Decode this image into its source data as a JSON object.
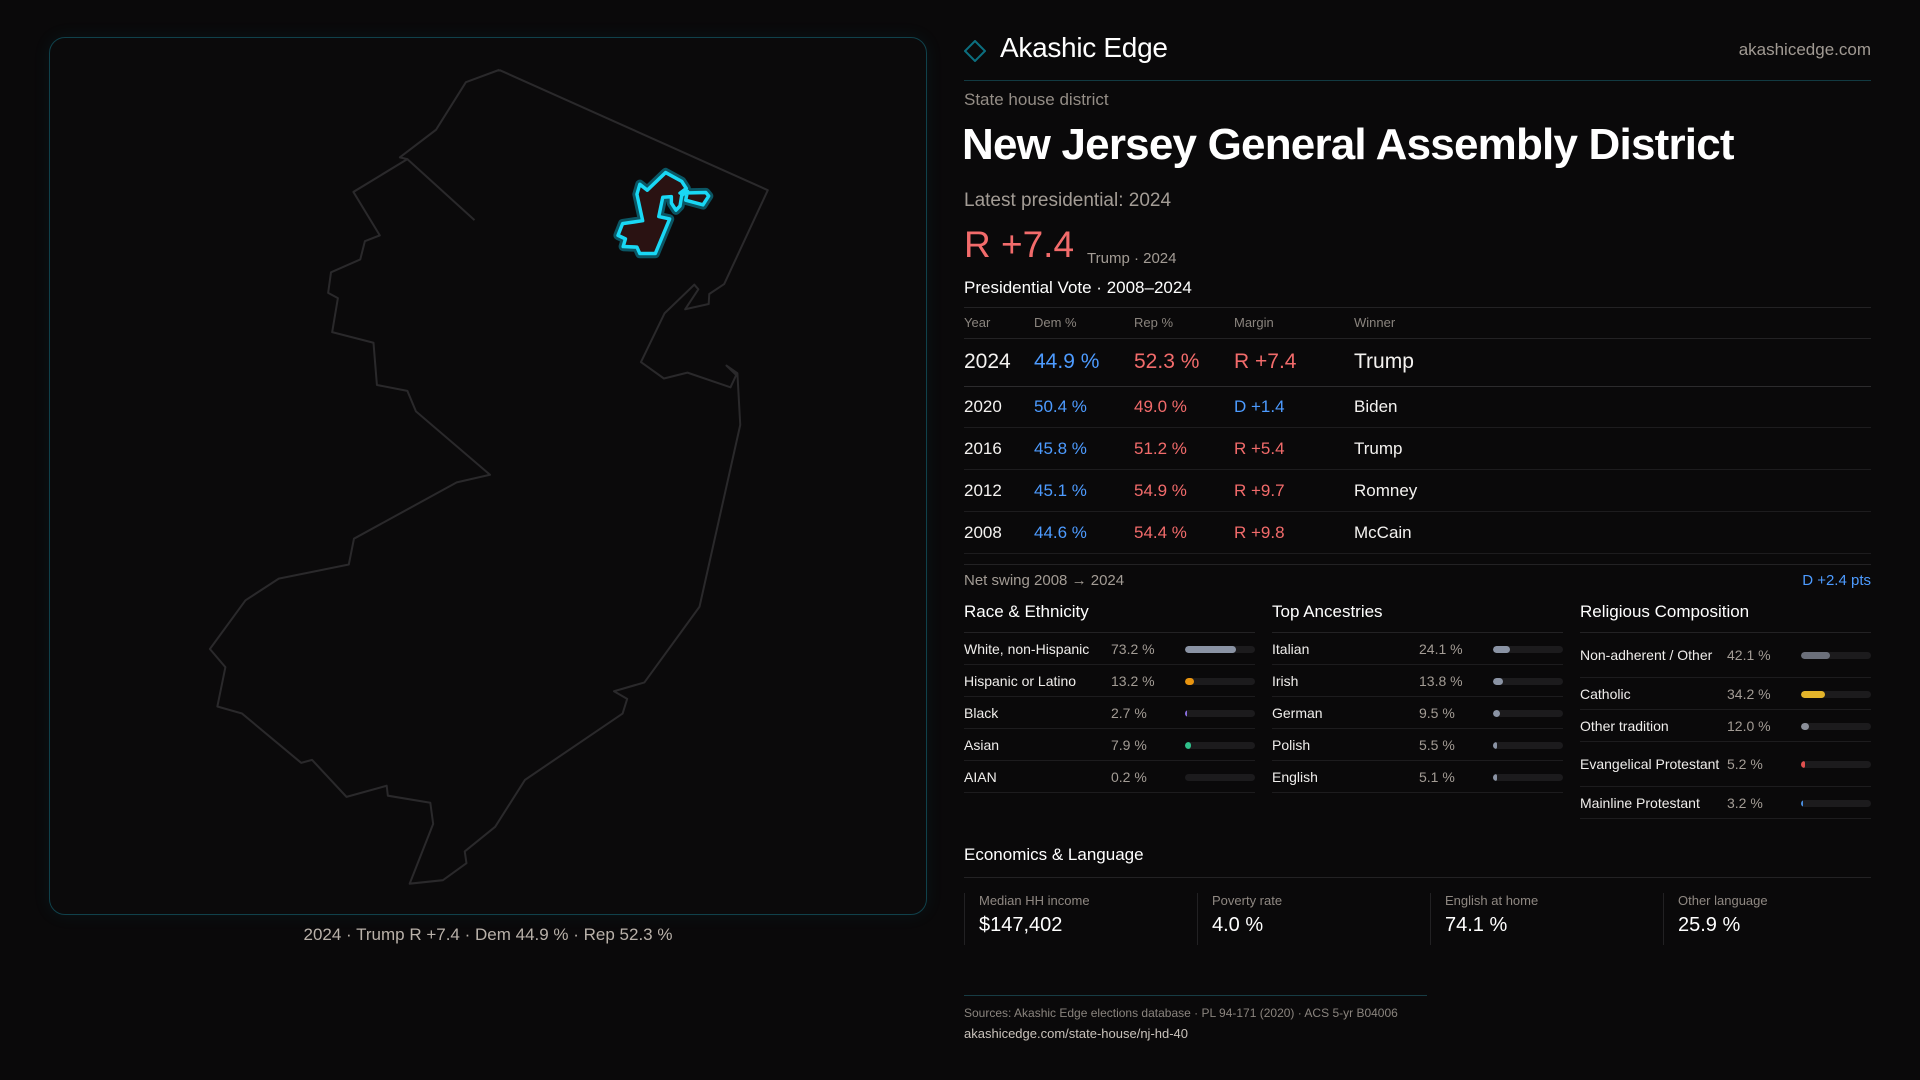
{
  "brand": {
    "name": "Akashic Edge",
    "url": "akashicedge.com",
    "logo_icon": "diamond-outline-icon",
    "accent": "#0fb7d4"
  },
  "header": {
    "subtitle": "State house district",
    "title": "New Jersey General Assembly District",
    "latest_label": "Latest presidential: 2024",
    "latest_margin": "R +7.4",
    "latest_sub": "Trump · 2024"
  },
  "map": {
    "caption": "2024 · Trump R +7.4 · Dem 44.9 % · Rep 52.3 %",
    "highlight_color": "#19d8f5"
  },
  "presidential": {
    "title": "Presidential Vote · 2008–2024",
    "columns": [
      "Year",
      "Dem %",
      "Rep %",
      "Margin",
      "Winner"
    ],
    "rows": [
      {
        "year": "2024",
        "dem": "44.9 %",
        "rep": "52.3 %",
        "margin": "R +7.4",
        "party": "R",
        "winner": "Trump"
      },
      {
        "year": "2020",
        "dem": "50.4 %",
        "rep": "49.0 %",
        "margin": "D +1.4",
        "party": "D",
        "winner": "Biden"
      },
      {
        "year": "2016",
        "dem": "45.8 %",
        "rep": "51.2 %",
        "margin": "R +5.4",
        "party": "R",
        "winner": "Trump"
      },
      {
        "year": "2012",
        "dem": "45.1 %",
        "rep": "54.9 %",
        "margin": "R +9.7",
        "party": "R",
        "winner": "Romney"
      },
      {
        "year": "2008",
        "dem": "44.6 %",
        "rep": "54.4 %",
        "margin": "R +9.8",
        "party": "R",
        "winner": "McCain"
      }
    ],
    "swing_label": "Net swing 2008 → 2024",
    "swing_value": "D +2.4 pts",
    "colors": {
      "dem": "#4d9bff",
      "rep": "#f26b6b"
    }
  },
  "demographics": [
    {
      "title": "Race & Ethnicity",
      "items": [
        {
          "label": "White, non-Hispanic",
          "value": "73.2 %",
          "pct": 73.2,
          "color": "#8a93a4"
        },
        {
          "label": "Hispanic or Latino",
          "value": "13.2 %",
          "pct": 13.2,
          "color": "#e8940f"
        },
        {
          "label": "Black",
          "value": "2.7 %",
          "pct": 2.7,
          "color": "#8a6fe0"
        },
        {
          "label": "Asian",
          "value": "7.9 %",
          "pct": 7.9,
          "color": "#2fc08a"
        },
        {
          "label": "AIAN",
          "value": "0.2 %",
          "pct": 0.2,
          "color": "#8a93a4"
        }
      ]
    },
    {
      "title": "Top Ancestries",
      "items": [
        {
          "label": "Italian",
          "value": "24.1 %",
          "pct": 24.1,
          "color": "#8a93a4"
        },
        {
          "label": "Irish",
          "value": "13.8 %",
          "pct": 13.8,
          "color": "#8a93a4"
        },
        {
          "label": "German",
          "value": "9.5 %",
          "pct": 9.5,
          "color": "#8a93a4"
        },
        {
          "label": "Polish",
          "value": "5.5 %",
          "pct": 5.5,
          "color": "#8a93a4"
        },
        {
          "label": "English",
          "value": "5.1 %",
          "pct": 5.1,
          "color": "#8a93a4"
        }
      ]
    },
    {
      "title": "Religious Composition",
      "items": [
        {
          "label": "Non-adherent / Other",
          "value": "42.1 %",
          "pct": 42.1,
          "color": "#6b6f7a"
        },
        {
          "label": "Catholic",
          "value": "34.2 %",
          "pct": 34.2,
          "color": "#e3b42a"
        },
        {
          "label": "Other tradition",
          "value": "12.0 %",
          "pct": 12.0,
          "color": "#8b8f99"
        },
        {
          "label": "Evangelical Protestant",
          "value": "5.2 %",
          "pct": 5.2,
          "color": "#e0504f"
        },
        {
          "label": "Mainline Protestant",
          "value": "3.2 %",
          "pct": 3.2,
          "color": "#4a8ee0"
        }
      ]
    }
  ],
  "economics": {
    "title": "Economics & Language",
    "stats": [
      {
        "label": "Median HH income",
        "value": "$147,402"
      },
      {
        "label": "Poverty rate",
        "value": "4.0 %"
      },
      {
        "label": "English at home",
        "value": "74.1 %"
      },
      {
        "label": "Other language",
        "value": "25.9 %"
      }
    ]
  },
  "footer": {
    "sources": "Sources: Akashic Edge elections database · PL 94-171 (2020) · ACS 5-yr B04006",
    "url": "akashicedge.com/state-house/nj-hd-40"
  }
}
